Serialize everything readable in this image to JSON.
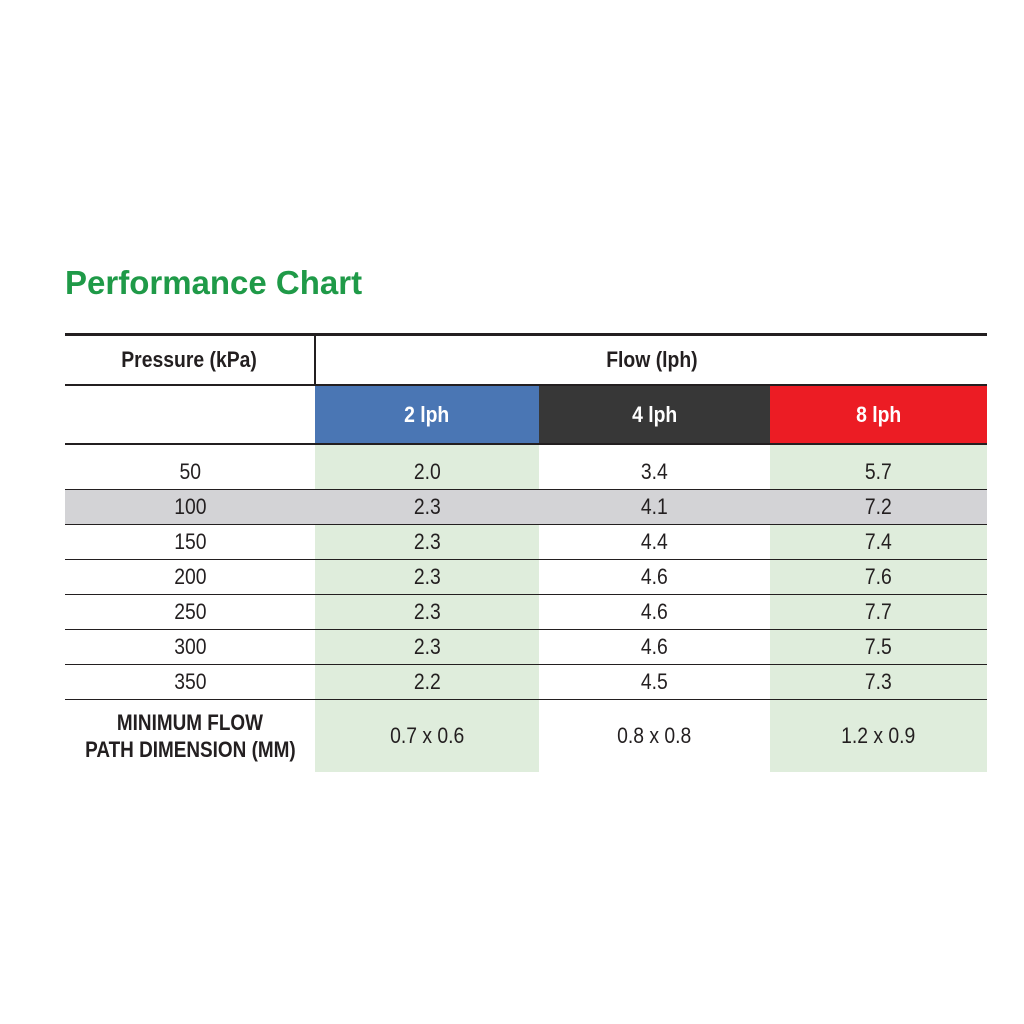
{
  "title": "Performance Chart",
  "table": {
    "pressure_header": "Pressure (kPa)",
    "flow_header": "Flow (lph)",
    "columns": [
      {
        "label": "2 lph",
        "color": "#4a76b4"
      },
      {
        "label": "4 lph",
        "color": "#373737"
      },
      {
        "label": "8 lph",
        "color": "#ec1c24"
      }
    ],
    "rows": [
      {
        "pressure": "50",
        "v2": "2.0",
        "v4": "3.4",
        "v8": "5.7"
      },
      {
        "pressure": "100",
        "v2": "2.3",
        "v4": "4.1",
        "v8": "7.2"
      },
      {
        "pressure": "150",
        "v2": "2.3",
        "v4": "4.4",
        "v8": "7.4"
      },
      {
        "pressure": "200",
        "v2": "2.3",
        "v4": "4.6",
        "v8": "7.6"
      },
      {
        "pressure": "250",
        "v2": "2.3",
        "v4": "4.6",
        "v8": "7.7"
      },
      {
        "pressure": "300",
        "v2": "2.3",
        "v4": "4.6",
        "v8": "7.5"
      },
      {
        "pressure": "350",
        "v2": "2.2",
        "v4": "4.5",
        "v8": "7.3"
      }
    ],
    "min_flow": {
      "label_line1": "MINIMUM FLOW",
      "label_line2": "PATH DIMENSION (MM)",
      "v2": "0.7 x 0.6",
      "v4": "0.8 x 0.8",
      "v8": "1.2 x 0.9"
    }
  },
  "colors": {
    "title": "#1f9a48",
    "shade": "#dfeddc",
    "highlight_row": "#d3d3d6"
  }
}
